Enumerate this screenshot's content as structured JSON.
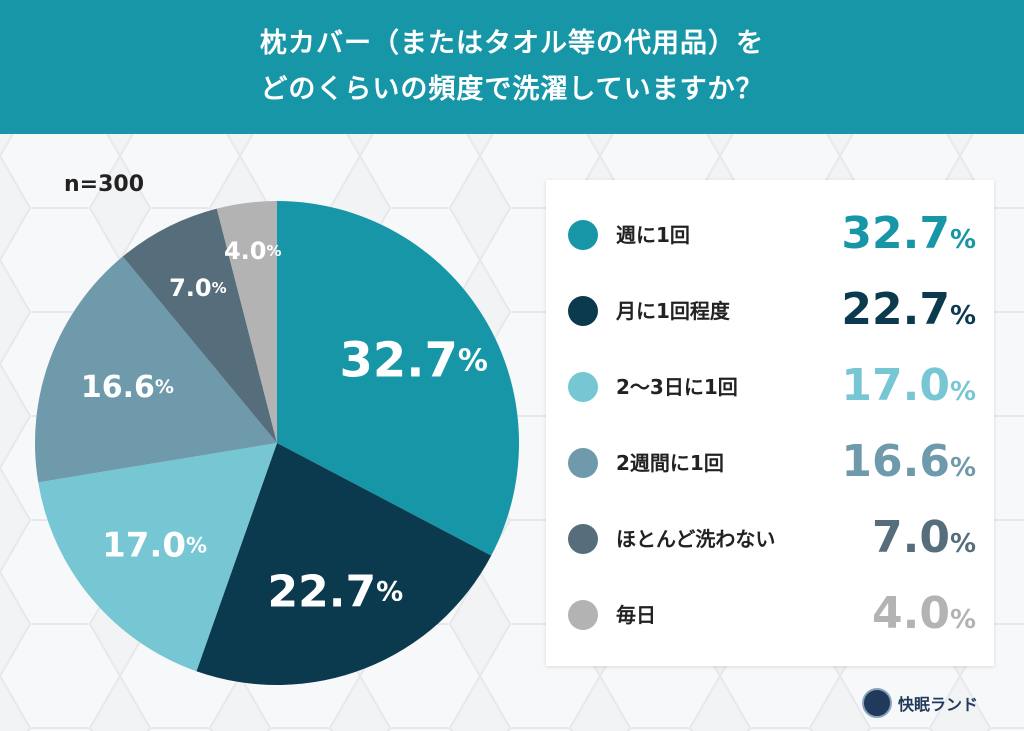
{
  "header": {
    "title_line1": "枕カバー（またはタオル等の代用品）を",
    "title_line2": "どのくらいの頻度で洗濯していますか？"
  },
  "sample_size": "n=300",
  "chart_data": {
    "type": "pie",
    "title": "枕カバー（またはタオル等の代用品）をどのくらいの頻度で洗濯していますか？",
    "n": 300,
    "slices": [
      {
        "label": "週に1回",
        "value": 32.7,
        "value_text": "32.7",
        "color": "#1796a8"
      },
      {
        "label": "月に1回程度",
        "value": 22.7,
        "value_text": "22.7",
        "color": "#0b3a4e"
      },
      {
        "label": "2〜3日に1回",
        "value": 17.0,
        "value_text": "17.0",
        "color": "#77c6d4"
      },
      {
        "label": "2週間に1回",
        "value": 16.6,
        "value_text": "16.6",
        "color": "#6e9aab"
      },
      {
        "label": "ほとんど洗わない",
        "value": 7.0,
        "value_text": "7.0",
        "color": "#566e7b"
      },
      {
        "label": "毎日",
        "value": 4.0,
        "value_text": "4.0",
        "color": "#b3b3b3"
      }
    ],
    "unit": "%",
    "legend_position": "right"
  },
  "logo": {
    "text": "快眠ランド",
    "icon": "kaimin-land-logo-icon"
  }
}
